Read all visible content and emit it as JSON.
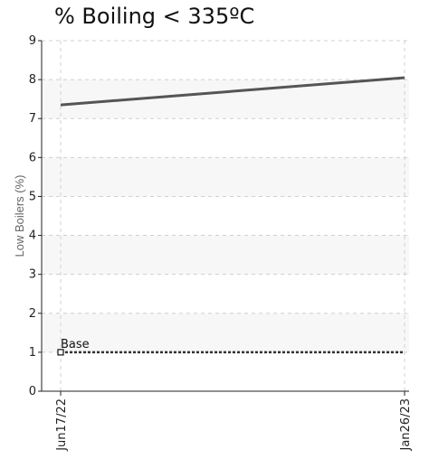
{
  "chart_data": {
    "type": "line",
    "title": "% Boiling < 335ºC",
    "ylabel": "Low Boilers (%)",
    "xlabel": "",
    "x": [
      "Jun17/22",
      "Jan26/23"
    ],
    "ylim": [
      0,
      9
    ],
    "yticks": [
      0,
      1,
      2,
      3,
      4,
      5,
      6,
      7,
      8,
      9
    ],
    "xticks": [
      "Jun17/22",
      "Jan26/23"
    ],
    "grid": true,
    "series": [
      {
        "values": [
          7.35,
          8.05
        ],
        "color": "#555555",
        "style": "solid"
      },
      {
        "name": "Base",
        "values": [
          1,
          1
        ],
        "color": "#333333",
        "style": "dotted",
        "marker": "square"
      }
    ],
    "annotations": [
      {
        "text": "Base",
        "x": "Jun17/22",
        "y": 1
      }
    ]
  }
}
